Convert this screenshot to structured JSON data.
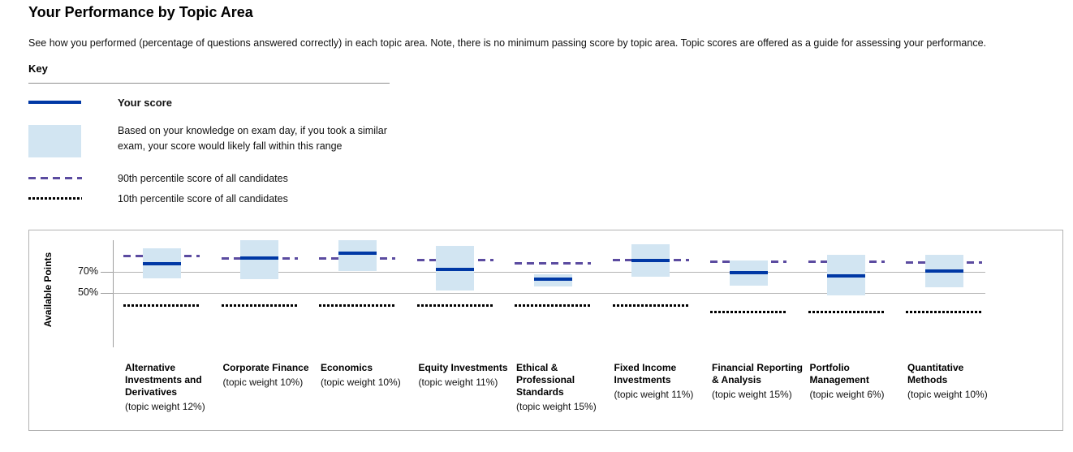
{
  "page": {
    "title": "Your Performance by Topic Area",
    "description": "See how you performed (percentage of questions answered correctly) in each topic area. Note, there is no minimum passing score by topic area. Topic scores are offered as a guide for assessing your performance."
  },
  "key": {
    "heading": "Key",
    "items": [
      {
        "swatch": "solid-blue-line",
        "label": "Your score"
      },
      {
        "swatch": "light-blue-box",
        "label": "Based on your knowledge on exam day, if you took a similar exam, your score would likely fall within this range"
      },
      {
        "swatch": "purple-dashed-line",
        "label": "90th percentile score of all candidates"
      },
      {
        "swatch": "black-dotted-line",
        "label": "10th percentile score of all candidates"
      }
    ]
  },
  "colors": {
    "score_line": "#0038a5",
    "likely_range_box": "#d2e5f2",
    "p90_line": "#5b4ba0",
    "p10_line": "#000000",
    "gridline": "#b3b3b3",
    "axis": "#9e9e9e"
  },
  "chart_data": {
    "type": "range-bar",
    "ylabel": "Available Points",
    "y_unit": "percent of available points",
    "grid": true,
    "legend_position": "above-left",
    "yticks": [
      {
        "label": "70%",
        "value": 70
      },
      {
        "label": "50%",
        "value": 50
      }
    ],
    "series_legend": [
      "Your score",
      "Likely score range (knowledge on exam day)",
      "90th percentile score of all candidates",
      "10th percentile score of all candidates"
    ],
    "topics": [
      {
        "name": "Alternative Investments and Derivatives",
        "weight_label": "(topic weight 12%)",
        "weight_pct": 12,
        "score": 78,
        "range_low": 64,
        "range_high": 92,
        "p90": 85,
        "p10": 38
      },
      {
        "name": "Corporate Finance",
        "weight_label": "(topic weight 10%)",
        "weight_pct": 10,
        "score": 83,
        "range_low": 63,
        "range_high": 100,
        "p90": 83,
        "p10": 38
      },
      {
        "name": "Economics",
        "weight_label": "(topic weight 10%)",
        "weight_pct": 10,
        "score": 88,
        "range_low": 71,
        "range_high": 100,
        "p90": 83,
        "p10": 38
      },
      {
        "name": "Equity Investments",
        "weight_label": "(topic weight 11%)",
        "weight_pct": 11,
        "score": 72,
        "range_low": 52,
        "range_high": 95,
        "p90": 81,
        "p10": 38
      },
      {
        "name": "Ethical & Professional Standards",
        "weight_label": "(topic weight 15%)",
        "weight_pct": 15,
        "score": 63,
        "range_low": 56,
        "range_high": 68,
        "p90": 78,
        "p10": 38
      },
      {
        "name": "Fixed Income Investments",
        "weight_label": "(topic weight 11%)",
        "weight_pct": 11,
        "score": 81,
        "range_low": 65,
        "range_high": 96,
        "p90": 81,
        "p10": 38
      },
      {
        "name": "Financial Reporting & Analysis",
        "weight_label": "(topic weight 15%)",
        "weight_pct": 15,
        "score": 69,
        "range_low": 57,
        "range_high": 81,
        "p90": 80,
        "p10": 32
      },
      {
        "name": "Portfolio Management",
        "weight_label": "(topic weight 6%)",
        "weight_pct": 6,
        "score": 66,
        "range_low": 48,
        "range_high": 86,
        "p90": 80,
        "p10": 32
      },
      {
        "name": "Quantitative Methods",
        "weight_label": "(topic weight 10%)",
        "weight_pct": 10,
        "score": 71,
        "range_low": 55,
        "range_high": 86,
        "p90": 79,
        "p10": 32
      }
    ]
  }
}
